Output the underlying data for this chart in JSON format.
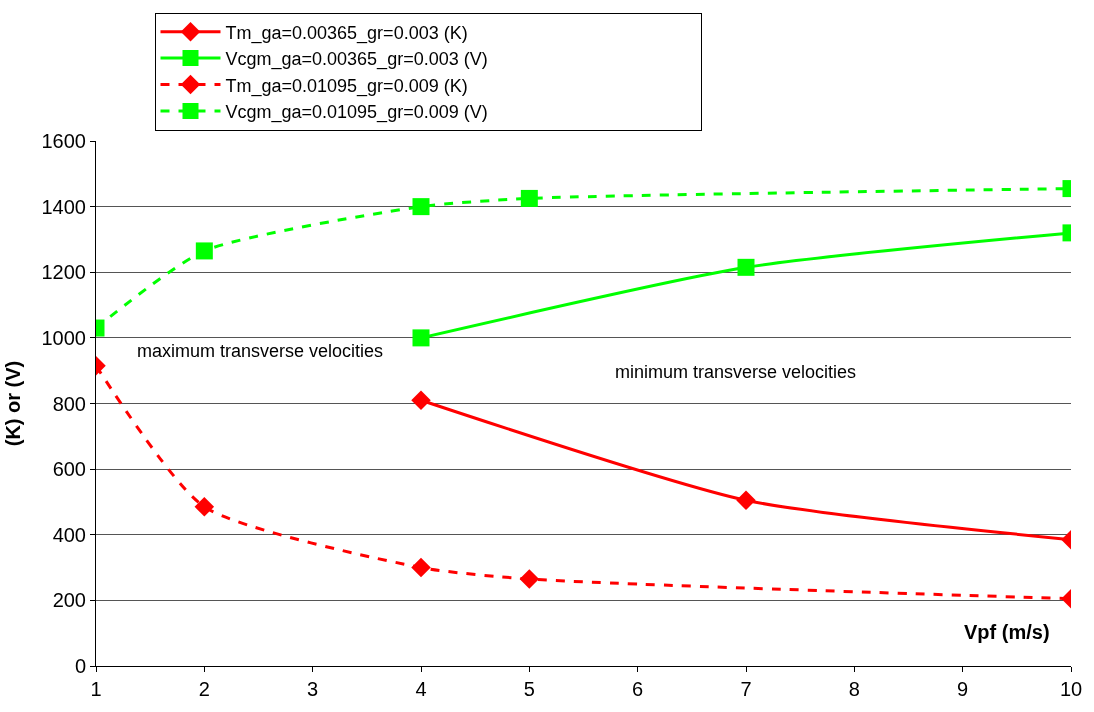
{
  "chart_data": {
    "type": "line",
    "ylabel": "(K) or (V)",
    "xlabel": "Vpf (m/s)",
    "xlim": [
      1,
      10
    ],
    "xticks": [
      1,
      2,
      3,
      4,
      5,
      6,
      7,
      8,
      9,
      10
    ],
    "ylim": [
      0,
      1600
    ],
    "yticks": [
      0,
      200,
      400,
      600,
      800,
      1000,
      1200,
      1400,
      1600
    ],
    "grid": "y",
    "legend": "top",
    "series": [
      {
        "name": "Tm_ga=0.00365_gr=0.003 (K)",
        "color": "#ff0000",
        "marker": "diamond",
        "line_style": "solid",
        "x": [
          4,
          7,
          10
        ],
        "values": [
          810,
          505,
          385
        ]
      },
      {
        "name": "Vcgm_ga=0.00365_gr=0.003 (V)",
        "color": "#00ff00",
        "marker": "square",
        "line_style": "solid",
        "x": [
          4,
          7,
          10
        ],
        "values": [
          1000,
          1215,
          1320
        ]
      },
      {
        "name": "Tm_ga=0.01095_gr=0.009 (K)",
        "color": "#ff0000",
        "marker": "diamond",
        "line_style": "dashed",
        "x": [
          1,
          2,
          4,
          5,
          10
        ],
        "values": [
          915,
          485,
          300,
          265,
          205
        ]
      },
      {
        "name": "Vcgm_ga=0.01095_gr=0.009 (V)",
        "color": "#00ff00",
        "marker": "square",
        "line_style": "dashed",
        "x": [
          1,
          2,
          4,
          5,
          10
        ],
        "values": [
          1030,
          1265,
          1400,
          1425,
          1455
        ]
      }
    ],
    "annotations": [
      "maximum transverse velocities",
      "minimum transverse velocities"
    ]
  }
}
